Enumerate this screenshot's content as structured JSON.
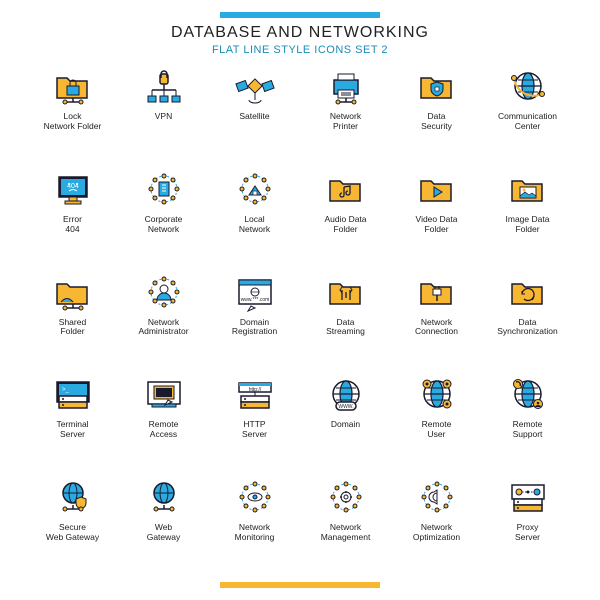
{
  "title": "DATABASE AND NETWORKING",
  "subtitle": "FLAT LINE STYLE ICONS SET 2",
  "colors": {
    "accent_blue": "#29abe2",
    "accent_orange": "#f7b733",
    "dark_blue": "#1a1a2e",
    "teal": "#1a8db8",
    "white": "#ffffff",
    "text": "#222222"
  },
  "icons": [
    {
      "name": "lock-network-folder-icon",
      "label": "Lock\nNetwork Folder"
    },
    {
      "name": "vpn-icon",
      "label": "VPN"
    },
    {
      "name": "satellite-icon",
      "label": "Satellite"
    },
    {
      "name": "network-printer-icon",
      "label": "Network\nPrinter"
    },
    {
      "name": "data-security-icon",
      "label": "Data\nSecurity"
    },
    {
      "name": "communication-center-icon",
      "label": "Communication\nCenter"
    },
    {
      "name": "error-404-icon",
      "label": "Error\n404"
    },
    {
      "name": "corporate-network-icon",
      "label": "Corporate\nNetwork"
    },
    {
      "name": "local-network-icon",
      "label": "Local\nNetwork"
    },
    {
      "name": "audio-data-folder-icon",
      "label": "Audio Data\nFolder"
    },
    {
      "name": "video-data-folder-icon",
      "label": "Video Data\nFolder"
    },
    {
      "name": "image-data-folder-icon",
      "label": "Image Data\nFolder"
    },
    {
      "name": "shared-folder-icon",
      "label": "Shared\nFolder"
    },
    {
      "name": "network-administrator-icon",
      "label": "Network\nAdministrator"
    },
    {
      "name": "domain-registration-icon",
      "label": "Domain\nRegistration"
    },
    {
      "name": "data-streaming-icon",
      "label": "Data\nStreaming"
    },
    {
      "name": "network-connection-icon",
      "label": "Network\nConnection"
    },
    {
      "name": "data-synchronization-icon",
      "label": "Data\nSynchronization"
    },
    {
      "name": "terminal-server-icon",
      "label": "Terminal\nServer"
    },
    {
      "name": "remote-access-icon",
      "label": "Remote\nAccess"
    },
    {
      "name": "http-server-icon",
      "label": "HTTP\nServer"
    },
    {
      "name": "domain-icon",
      "label": "Domain"
    },
    {
      "name": "remote-user-icon",
      "label": "Remote\nUser"
    },
    {
      "name": "remote-support-icon",
      "label": "Remote\nSupport"
    },
    {
      "name": "secure-web-gateway-icon",
      "label": "Secure\nWeb Gateway"
    },
    {
      "name": "web-gateway-icon",
      "label": "Web\nGateway"
    },
    {
      "name": "network-monitoring-icon",
      "label": "Network\nMonitoring"
    },
    {
      "name": "network-management-icon",
      "label": "Network\nManagement"
    },
    {
      "name": "network-optimization-icon",
      "label": "Network\nOptimization"
    },
    {
      "name": "proxy-server-icon",
      "label": "Proxy\nServer"
    }
  ]
}
